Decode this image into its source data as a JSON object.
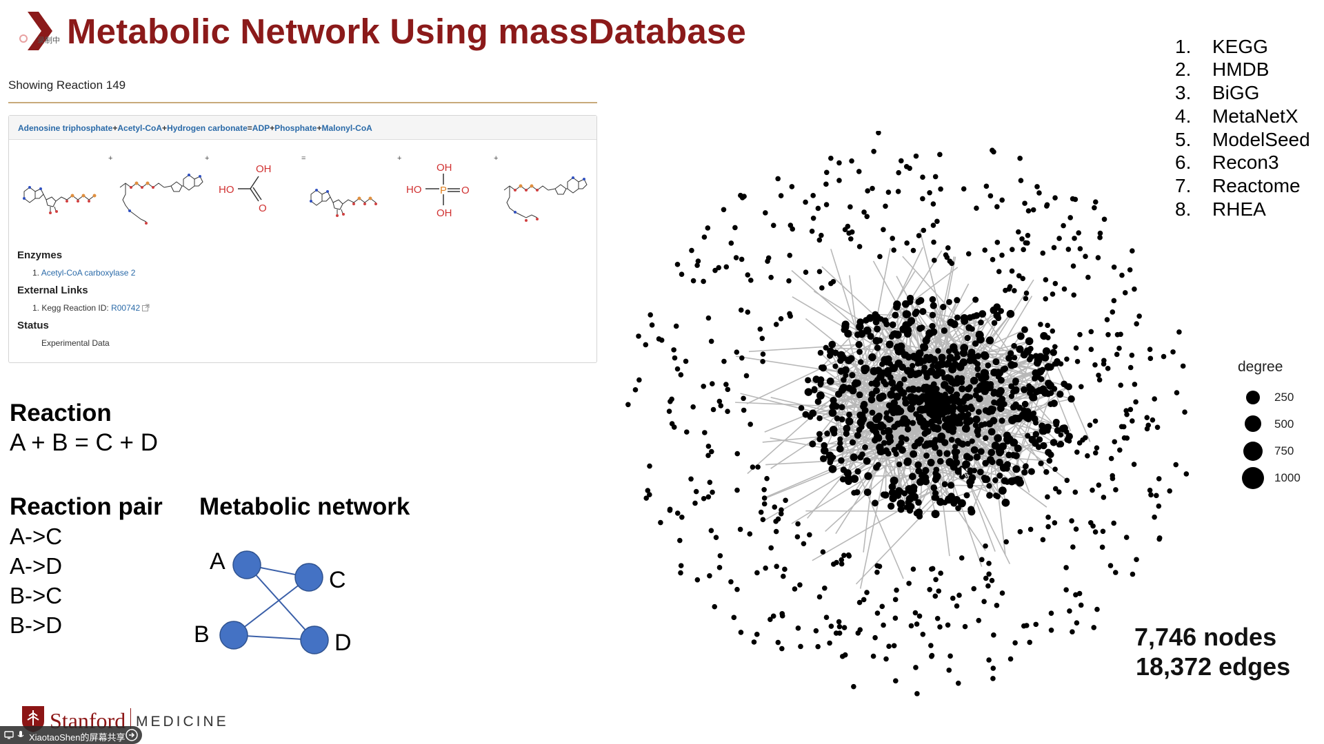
{
  "slide": {
    "title": "Metabolic Network Using massDatabase",
    "recording_label": "录制中"
  },
  "reaction_panel": {
    "showing": "Showing Reaction 149",
    "equation": {
      "reactant_1": "Adenosine triphosphate",
      "reactant_2": "Acetyl-CoA",
      "reactant_3": "Hydrogen carbonate",
      "product_1": "ADP",
      "product_2": "Phosphate",
      "product_3": "Malonyl-CoA",
      "plus": "+",
      "equals": "="
    },
    "structures": {
      "bicarbonate": {
        "oh": "OH",
        "ho": "HO",
        "o": "O"
      },
      "phosphate": {
        "oh_top": "OH",
        "ho": "HO",
        "o": "O",
        "p": "P",
        "oh_bottom": "OH"
      }
    },
    "enzymes_label": "Enzymes",
    "enzyme_item_prefix": "1.",
    "enzyme_item": "Acetyl-CoA carboxylase 2",
    "external_links_label": "External Links",
    "external_item_prefix": "1.",
    "external_item_text": "Kegg Reaction ID:",
    "external_item_link": "R00742",
    "status_label": "Status",
    "status_value": "Experimental Data"
  },
  "reaction_explainer": {
    "heading": "Reaction",
    "equation": "A + B = C + D",
    "pair_heading": "Reaction pair",
    "pairs": [
      "A->C",
      "A->D",
      "B->C",
      "B->D"
    ],
    "network_heading": "Metabolic network",
    "nodes": [
      "A",
      "B",
      "C",
      "D"
    ],
    "node_color": "#4472c4"
  },
  "databases": {
    "items": [
      {
        "num": "1.",
        "name": "KEGG"
      },
      {
        "num": "2.",
        "name": "HMDB"
      },
      {
        "num": "3.",
        "name": "BiGG"
      },
      {
        "num": "4.",
        "name": "MetaNetX"
      },
      {
        "num": "5.",
        "name": "ModelSeed"
      },
      {
        "num": "6.",
        "name": "Recon3"
      },
      {
        "num": "7.",
        "name": "Reactome"
      },
      {
        "num": "8.",
        "name": "RHEA"
      }
    ]
  },
  "network_plot": {
    "legend_title": "degree",
    "legend_items": [
      "250",
      "500",
      "750",
      "1000"
    ],
    "nodes_text": "7,746 nodes",
    "edges_text": "18,372 edges",
    "edge_color": "#b8b8b8",
    "node_color": "#000000"
  },
  "footer": {
    "stanford": "Stanford",
    "medicine": "MEDICINE",
    "share_label": "XiaotaoShen的屏幕共享"
  },
  "colors": {
    "title": "#8b1a1a",
    "link": "#2a6aa8",
    "divider": "#c8a97a"
  }
}
